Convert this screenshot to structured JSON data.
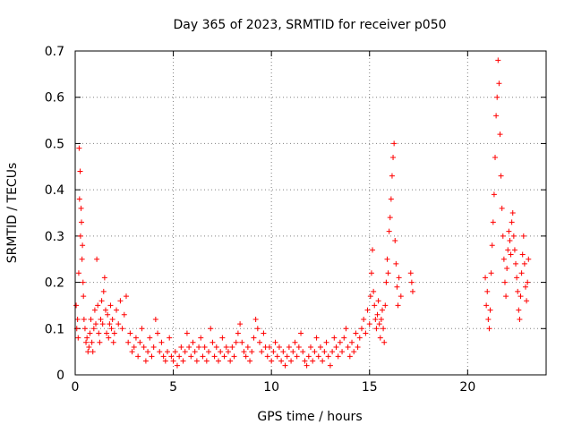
{
  "chart_data": {
    "type": "scatter",
    "title": "Day 365 of 2023, SRMTID for receiver p050",
    "xlabel": "GPS time / hours",
    "ylabel": "SRMTID / TECUs",
    "xlim": [
      0,
      24
    ],
    "ylim": [
      0,
      0.7
    ],
    "x_ticks": [
      0,
      5,
      10,
      15,
      20
    ],
    "x_tick_labels": [
      "0",
      "5",
      "10",
      "15",
      "20"
    ],
    "y_ticks": [
      0,
      0.1,
      0.2,
      0.3,
      0.4,
      0.5,
      0.6,
      0.7
    ],
    "y_tick_labels": [
      "0",
      "0.1",
      "0.2",
      "0.3",
      "0.4",
      "0.5",
      "0.6",
      "0.7"
    ],
    "grid": true,
    "marker": "plus",
    "color": "#ff0000",
    "series": [
      {
        "name": "SRMTID",
        "points": [
          [
            0.05,
            0.15
          ],
          [
            0.08,
            0.1
          ],
          [
            0.12,
            0.12
          ],
          [
            0.15,
            0.08
          ],
          [
            0.18,
            0.22
          ],
          [
            0.2,
            0.49
          ],
          [
            0.22,
            0.38
          ],
          [
            0.25,
            0.44
          ],
          [
            0.27,
            0.3
          ],
          [
            0.3,
            0.36
          ],
          [
            0.32,
            0.33
          ],
          [
            0.35,
            0.25
          ],
          [
            0.37,
            0.28
          ],
          [
            0.4,
            0.2
          ],
          [
            0.42,
            0.17
          ],
          [
            0.45,
            0.12
          ],
          [
            0.5,
            0.1
          ],
          [
            0.55,
            0.07
          ],
          [
            0.6,
            0.08
          ],
          [
            0.65,
            0.05
          ],
          [
            0.7,
            0.06
          ],
          [
            0.75,
            0.09
          ],
          [
            0.8,
            0.12
          ],
          [
            0.85,
            0.07
          ],
          [
            0.9,
            0.05
          ],
          [
            0.95,
            0.1
          ],
          [
            1.0,
            0.14
          ],
          [
            1.05,
            0.11
          ],
          [
            1.1,
            0.25
          ],
          [
            1.15,
            0.15
          ],
          [
            1.2,
            0.09
          ],
          [
            1.25,
            0.07
          ],
          [
            1.3,
            0.12
          ],
          [
            1.35,
            0.16
          ],
          [
            1.4,
            0.11
          ],
          [
            1.45,
            0.18
          ],
          [
            1.5,
            0.21
          ],
          [
            1.55,
            0.14
          ],
          [
            1.6,
            0.09
          ],
          [
            1.65,
            0.13
          ],
          [
            1.7,
            0.08
          ],
          [
            1.75,
            0.11
          ],
          [
            1.8,
            0.15
          ],
          [
            1.85,
            0.1
          ],
          [
            1.9,
            0.12
          ],
          [
            1.95,
            0.07
          ],
          [
            2.0,
            0.09
          ],
          [
            2.1,
            0.14
          ],
          [
            2.2,
            0.11
          ],
          [
            2.3,
            0.16
          ],
          [
            2.4,
            0.1
          ],
          [
            2.5,
            0.13
          ],
          [
            2.6,
            0.17
          ],
          [
            2.7,
            0.07
          ],
          [
            2.8,
            0.09
          ],
          [
            2.9,
            0.05
          ],
          [
            3.0,
            0.06
          ],
          [
            3.1,
            0.08
          ],
          [
            3.2,
            0.04
          ],
          [
            3.3,
            0.07
          ],
          [
            3.4,
            0.1
          ],
          [
            3.5,
            0.06
          ],
          [
            3.6,
            0.03
          ],
          [
            3.7,
            0.05
          ],
          [
            3.8,
            0.08
          ],
          [
            3.9,
            0.04
          ],
          [
            4.0,
            0.06
          ],
          [
            4.1,
            0.12
          ],
          [
            4.2,
            0.09
          ],
          [
            4.3,
            0.05
          ],
          [
            4.4,
            0.07
          ],
          [
            4.5,
            0.04
          ],
          [
            4.6,
            0.03
          ],
          [
            4.7,
            0.05
          ],
          [
            4.8,
            0.08
          ],
          [
            4.9,
            0.04
          ],
          [
            5.0,
            0.03
          ],
          [
            5.1,
            0.05
          ],
          [
            5.2,
            0.02
          ],
          [
            5.3,
            0.04
          ],
          [
            5.4,
            0.06
          ],
          [
            5.5,
            0.03
          ],
          [
            5.6,
            0.05
          ],
          [
            5.7,
            0.09
          ],
          [
            5.8,
            0.06
          ],
          [
            5.9,
            0.04
          ],
          [
            6.0,
            0.07
          ],
          [
            6.1,
            0.05
          ],
          [
            6.2,
            0.03
          ],
          [
            6.3,
            0.06
          ],
          [
            6.4,
            0.08
          ],
          [
            6.5,
            0.04
          ],
          [
            6.6,
            0.06
          ],
          [
            6.7,
            0.03
          ],
          [
            6.8,
            0.05
          ],
          [
            6.9,
            0.1
          ],
          [
            7.0,
            0.07
          ],
          [
            7.1,
            0.04
          ],
          [
            7.2,
            0.06
          ],
          [
            7.3,
            0.03
          ],
          [
            7.4,
            0.05
          ],
          [
            7.5,
            0.08
          ],
          [
            7.6,
            0.04
          ],
          [
            7.7,
            0.06
          ],
          [
            7.8,
            0.05
          ],
          [
            7.9,
            0.03
          ],
          [
            8.0,
            0.06
          ],
          [
            8.1,
            0.04
          ],
          [
            8.2,
            0.07
          ],
          [
            8.3,
            0.09
          ],
          [
            8.4,
            0.11
          ],
          [
            8.5,
            0.07
          ],
          [
            8.6,
            0.05
          ],
          [
            8.7,
            0.04
          ],
          [
            8.8,
            0.06
          ],
          [
            8.9,
            0.03
          ],
          [
            9.0,
            0.05
          ],
          [
            9.1,
            0.08
          ],
          [
            9.2,
            0.12
          ],
          [
            9.3,
            0.1
          ],
          [
            9.4,
            0.07
          ],
          [
            9.5,
            0.05
          ],
          [
            9.6,
            0.09
          ],
          [
            9.7,
            0.06
          ],
          [
            9.8,
            0.04
          ],
          [
            9.9,
            0.06
          ],
          [
            10.0,
            0.03
          ],
          [
            10.1,
            0.05
          ],
          [
            10.2,
            0.07
          ],
          [
            10.3,
            0.04
          ],
          [
            10.4,
            0.06
          ],
          [
            10.5,
            0.03
          ],
          [
            10.6,
            0.05
          ],
          [
            10.7,
            0.02
          ],
          [
            10.8,
            0.04
          ],
          [
            10.9,
            0.06
          ],
          [
            11.0,
            0.03
          ],
          [
            11.1,
            0.05
          ],
          [
            11.2,
            0.07
          ],
          [
            11.3,
            0.04
          ],
          [
            11.4,
            0.06
          ],
          [
            11.5,
            0.09
          ],
          [
            11.6,
            0.05
          ],
          [
            11.7,
            0.03
          ],
          [
            11.8,
            0.02
          ],
          [
            11.9,
            0.04
          ],
          [
            12.0,
            0.06
          ],
          [
            12.1,
            0.03
          ],
          [
            12.2,
            0.05
          ],
          [
            12.3,
            0.08
          ],
          [
            12.4,
            0.04
          ],
          [
            12.5,
            0.06
          ],
          [
            12.6,
            0.03
          ],
          [
            12.7,
            0.05
          ],
          [
            12.8,
            0.07
          ],
          [
            12.9,
            0.04
          ],
          [
            13.0,
            0.02
          ],
          [
            13.1,
            0.05
          ],
          [
            13.2,
            0.08
          ],
          [
            13.3,
            0.06
          ],
          [
            13.4,
            0.04
          ],
          [
            13.5,
            0.07
          ],
          [
            13.6,
            0.05
          ],
          [
            13.7,
            0.08
          ],
          [
            13.8,
            0.1
          ],
          [
            13.9,
            0.06
          ],
          [
            14.0,
            0.04
          ],
          [
            14.1,
            0.07
          ],
          [
            14.2,
            0.05
          ],
          [
            14.3,
            0.09
          ],
          [
            14.4,
            0.06
          ],
          [
            14.5,
            0.08
          ],
          [
            14.6,
            0.1
          ],
          [
            14.7,
            0.12
          ],
          [
            14.8,
            0.09
          ],
          [
            14.9,
            0.14
          ],
          [
            15.0,
            0.11
          ],
          [
            15.05,
            0.17
          ],
          [
            15.1,
            0.22
          ],
          [
            15.15,
            0.27
          ],
          [
            15.2,
            0.18
          ],
          [
            15.25,
            0.15
          ],
          [
            15.3,
            0.12
          ],
          [
            15.35,
            0.1
          ],
          [
            15.4,
            0.13
          ],
          [
            15.45,
            0.16
          ],
          [
            15.5,
            0.11
          ],
          [
            15.55,
            0.08
          ],
          [
            15.6,
            0.12
          ],
          [
            15.65,
            0.14
          ],
          [
            15.7,
            0.1
          ],
          [
            15.75,
            0.07
          ],
          [
            15.8,
            0.15
          ],
          [
            15.85,
            0.2
          ],
          [
            15.9,
            0.25
          ],
          [
            15.95,
            0.22
          ],
          [
            16.0,
            0.31
          ],
          [
            16.05,
            0.34
          ],
          [
            16.1,
            0.38
          ],
          [
            16.15,
            0.43
          ],
          [
            16.2,
            0.47
          ],
          [
            16.25,
            0.5
          ],
          [
            16.3,
            0.29
          ],
          [
            16.35,
            0.24
          ],
          [
            16.4,
            0.19
          ],
          [
            16.45,
            0.15
          ],
          [
            16.5,
            0.21
          ],
          [
            16.6,
            0.17
          ],
          [
            17.1,
            0.22
          ],
          [
            17.15,
            0.2
          ],
          [
            17.2,
            0.18
          ],
          [
            20.9,
            0.21
          ],
          [
            20.95,
            0.15
          ],
          [
            21.0,
            0.18
          ],
          [
            21.05,
            0.12
          ],
          [
            21.1,
            0.1
          ],
          [
            21.15,
            0.14
          ],
          [
            21.2,
            0.22
          ],
          [
            21.25,
            0.28
          ],
          [
            21.3,
            0.33
          ],
          [
            21.35,
            0.39
          ],
          [
            21.4,
            0.47
          ],
          [
            21.45,
            0.56
          ],
          [
            21.5,
            0.6
          ],
          [
            21.55,
            0.68
          ],
          [
            21.6,
            0.63
          ],
          [
            21.65,
            0.52
          ],
          [
            21.7,
            0.43
          ],
          [
            21.75,
            0.36
          ],
          [
            21.8,
            0.3
          ],
          [
            21.85,
            0.25
          ],
          [
            21.9,
            0.2
          ],
          [
            21.95,
            0.17
          ],
          [
            22.0,
            0.23
          ],
          [
            22.05,
            0.27
          ],
          [
            22.1,
            0.31
          ],
          [
            22.15,
            0.29
          ],
          [
            22.2,
            0.26
          ],
          [
            22.25,
            0.33
          ],
          [
            22.3,
            0.35
          ],
          [
            22.35,
            0.3
          ],
          [
            22.4,
            0.27
          ],
          [
            22.45,
            0.24
          ],
          [
            22.5,
            0.21
          ],
          [
            22.55,
            0.18
          ],
          [
            22.6,
            0.14
          ],
          [
            22.65,
            0.12
          ],
          [
            22.7,
            0.17
          ],
          [
            22.75,
            0.22
          ],
          [
            22.8,
            0.26
          ],
          [
            22.85,
            0.3
          ],
          [
            22.9,
            0.24
          ],
          [
            22.95,
            0.19
          ],
          [
            23.0,
            0.16
          ],
          [
            23.05,
            0.2
          ],
          [
            23.1,
            0.25
          ]
        ]
      }
    ]
  }
}
